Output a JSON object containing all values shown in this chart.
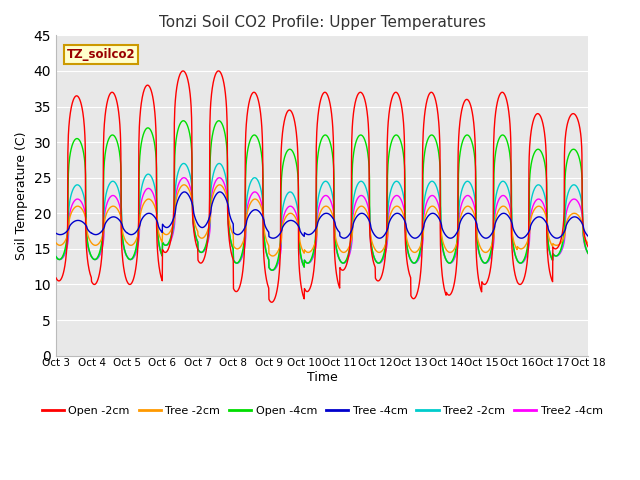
{
  "title": "Tonzi Soil CO2 Profile: Upper Temperatures",
  "xlabel": "Time",
  "ylabel": "Soil Temperature (C)",
  "ylim": [
    0,
    45
  ],
  "yticks": [
    0,
    5,
    10,
    15,
    20,
    25,
    30,
    35,
    40,
    45
  ],
  "xtick_labels": [
    "Oct 3",
    "Oct 4",
    "Oct 5",
    "Oct 6",
    "Oct 7",
    "Oct 8",
    "Oct 9",
    "Oct 10",
    "Oct 11",
    "Oct 12",
    "Oct 13",
    "Oct 14",
    "Oct 15",
    "Oct 16",
    "Oct 17",
    "Oct 18"
  ],
  "subtitle_box": "TZ_soilco2",
  "series_colors": {
    "Open -2cm": "#ff0000",
    "Tree -2cm": "#ff9900",
    "Open -4cm": "#00dd00",
    "Tree -4cm": "#0000cc",
    "Tree2 -2cm": "#00cccc",
    "Tree2 -4cm": "#ff00ff"
  },
  "background_color": "#e8e8e8",
  "open2_peaks": [
    36.5,
    37.0,
    38.0,
    40.0,
    40.0,
    37.0,
    34.5,
    37.0,
    37.0,
    37.0,
    37.0,
    36.0,
    37.0,
    34.0,
    34.0
  ],
  "open2_mins": [
    10.5,
    10.0,
    10.0,
    14.5,
    13.0,
    9.0,
    7.5,
    9.0,
    12.0,
    10.5,
    8.0,
    8.5,
    10.0,
    10.0,
    15.0
  ],
  "tree2_peaks": [
    21.0,
    21.0,
    22.0,
    24.0,
    24.0,
    22.0,
    20.0,
    21.0,
    21.0,
    21.0,
    21.0,
    21.0,
    21.0,
    21.0,
    20.0
  ],
  "tree2_mins": [
    15.5,
    15.5,
    15.5,
    17.0,
    16.5,
    15.0,
    14.0,
    14.5,
    14.5,
    14.5,
    14.5,
    14.5,
    14.5,
    15.0,
    15.5
  ],
  "open4_peaks": [
    30.5,
    31.0,
    32.0,
    33.0,
    33.0,
    31.0,
    29.0,
    31.0,
    31.0,
    31.0,
    31.0,
    31.0,
    31.0,
    29.0,
    29.0
  ],
  "open4_mins": [
    13.5,
    13.5,
    13.5,
    15.5,
    14.5,
    13.0,
    12.0,
    13.0,
    13.0,
    13.0,
    13.0,
    13.0,
    13.0,
    13.0,
    14.0
  ],
  "tree4_peaks": [
    19.0,
    19.5,
    20.0,
    23.0,
    23.0,
    20.5,
    19.0,
    20.0,
    20.0,
    20.0,
    20.0,
    20.0,
    20.0,
    19.5,
    19.5
  ],
  "tree4_mins": [
    17.0,
    17.0,
    17.0,
    18.0,
    18.0,
    17.0,
    16.5,
    17.0,
    16.5,
    16.5,
    16.5,
    16.5,
    16.5,
    16.5,
    16.5
  ],
  "tree22_peaks": [
    24.0,
    24.5,
    25.5,
    27.0,
    27.0,
    25.0,
    23.0,
    24.5,
    24.5,
    24.5,
    24.5,
    24.5,
    24.5,
    24.0,
    24.0
  ],
  "tree22_mins": [
    13.5,
    13.5,
    13.5,
    15.5,
    14.5,
    13.0,
    12.0,
    13.0,
    13.0,
    13.0,
    13.0,
    13.0,
    13.0,
    13.0,
    14.0
  ],
  "tree24_peaks": [
    22.0,
    22.5,
    23.5,
    25.0,
    25.0,
    23.0,
    21.0,
    22.5,
    22.5,
    22.5,
    22.5,
    22.5,
    22.5,
    22.0,
    22.0
  ],
  "tree24_mins": [
    13.5,
    13.5,
    13.5,
    15.5,
    14.5,
    13.0,
    12.0,
    13.0,
    13.0,
    13.0,
    13.0,
    13.0,
    13.0,
    13.0,
    14.0
  ],
  "n_days": 15,
  "pts_per_day": 144
}
